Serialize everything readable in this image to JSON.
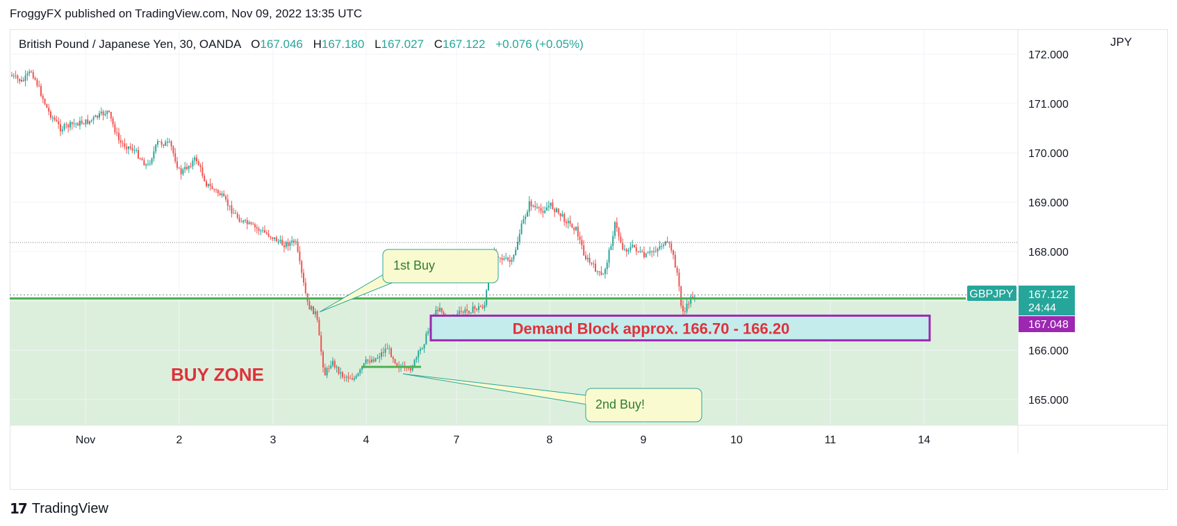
{
  "header": {
    "published": "FroggyFX published on TradingView.com, Nov 09, 2022 13:35 UTC"
  },
  "legend": {
    "symbol": "British Pound / Japanese Yen, 30, OANDA",
    "open_label": "O",
    "open": "167.046",
    "high_label": "H",
    "high": "167.180",
    "low_label": "L",
    "low": "167.027",
    "close_label": "C",
    "close": "167.122",
    "change": "+0.076 (+0.05%)"
  },
  "price_axis": {
    "unit": "JPY",
    "ticks": [
      "172.000",
      "171.000",
      "170.000",
      "169.000",
      "168.000",
      "166.000",
      "165.000"
    ],
    "last_symbol": "GBPJPY",
    "last_price": "167.122",
    "countdown": "24:44",
    "marker_price": "167.048"
  },
  "time_axis": {
    "labels": [
      "Nov",
      "2",
      "3",
      "4",
      "7",
      "8",
      "9",
      "10",
      "11",
      "14"
    ]
  },
  "annotations": {
    "first_buy": "1st Buy",
    "second_buy": "2nd Buy!",
    "demand_block": "Demand Block approx. 166.70 - 166.20",
    "buy_zone": "BUY ZONE"
  },
  "colors": {
    "up": "#26a69a",
    "down": "#ef5350",
    "buy_zone_fill": "#dcefdc",
    "buy_zone_line": "#4caf50",
    "demand_fill": "#c4ecec",
    "demand_border": "#9c27b0",
    "label_red": "#e0303a",
    "callout_fill": "#fafad0",
    "callout_border": "#26a69a",
    "callout_text": "#2e7d32",
    "marker_fill": "#9c27b0"
  },
  "footer": {
    "brand": "TradingView"
  },
  "chart_data": {
    "type": "line",
    "title": "British Pound / Japanese Yen, 30, OANDA",
    "xlabel": "",
    "ylabel": "JPY",
    "ylim": [
      164.4,
      172.2
    ],
    "x": [
      "Nov",
      "2",
      "3",
      "4",
      "7",
      "8",
      "9",
      "10"
    ],
    "series": [
      {
        "name": "GBPJPY",
        "values": [
          171.6,
          170.5,
          168.1,
          165.4,
          166.8,
          168.9,
          168.0,
          167.12
        ]
      }
    ],
    "annotations": {
      "buy_zone_top": 167.05,
      "demand_block": [
        166.2,
        166.7
      ],
      "last_price": 167.122
    }
  }
}
